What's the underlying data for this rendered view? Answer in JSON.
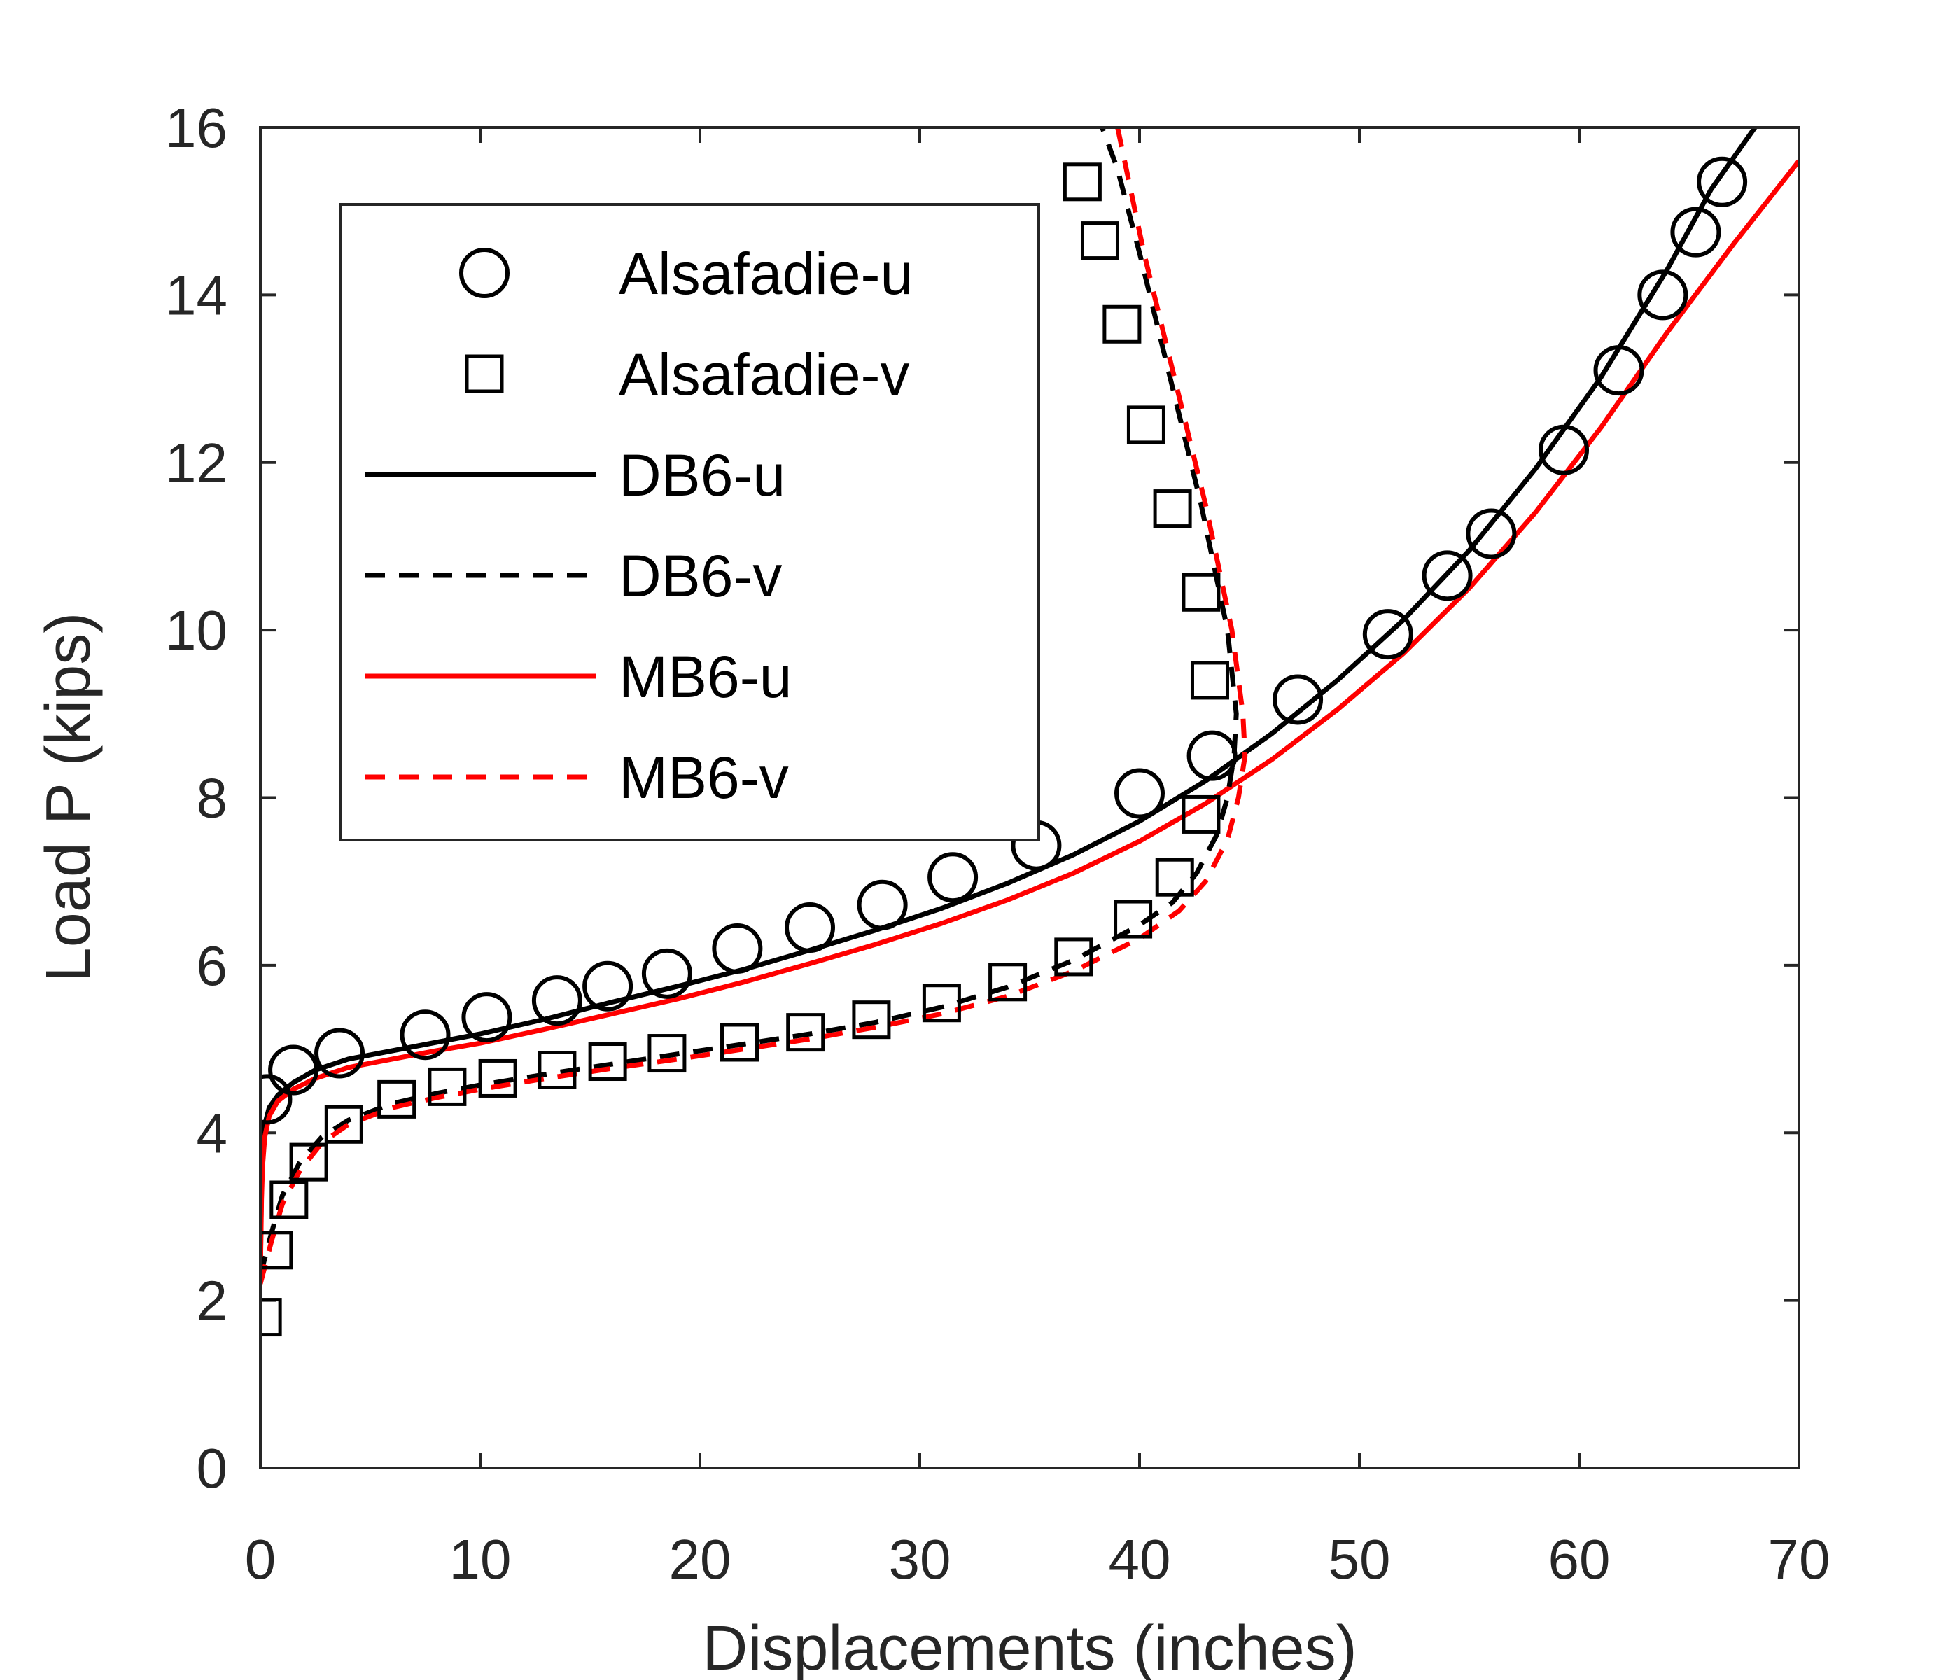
{
  "chart_data": {
    "type": "line",
    "xlabel": "Displacements (inches)",
    "ylabel": "Load P (kips)",
    "xlim": [
      0,
      70
    ],
    "ylim": [
      0,
      16
    ],
    "xticks": [
      0,
      10,
      20,
      30,
      40,
      50,
      60,
      70
    ],
    "yticks": [
      0,
      2,
      4,
      6,
      8,
      10,
      12,
      14,
      16
    ],
    "grid": false,
    "legend_position": "top-left",
    "series": [
      {
        "name": "Alsafadie-u",
        "style": "marker",
        "marker": "circle",
        "color": "#000000",
        "points": [
          [
            0.3,
            4.4
          ],
          [
            1.5,
            4.75
          ],
          [
            3.6,
            4.95
          ],
          [
            7.5,
            5.17
          ],
          [
            10.3,
            5.38
          ],
          [
            13.5,
            5.58
          ],
          [
            15.8,
            5.75
          ],
          [
            18.5,
            5.9
          ],
          [
            21.7,
            6.2
          ],
          [
            25.0,
            6.45
          ],
          [
            28.3,
            6.72
          ],
          [
            31.5,
            7.05
          ],
          [
            35.3,
            7.43
          ],
          [
            40.0,
            8.05
          ],
          [
            43.3,
            8.5
          ],
          [
            47.2,
            9.17
          ],
          [
            51.3,
            9.95
          ],
          [
            54.0,
            10.65
          ],
          [
            56.0,
            11.15
          ],
          [
            59.3,
            12.15
          ],
          [
            61.8,
            13.1
          ],
          [
            63.8,
            14.0
          ],
          [
            65.3,
            14.75
          ],
          [
            66.5,
            15.35
          ]
        ]
      },
      {
        "name": "Alsafadie-v",
        "style": "marker",
        "marker": "square",
        "color": "#000000",
        "points": [
          [
            0.1,
            1.8
          ],
          [
            0.6,
            2.6
          ],
          [
            1.3,
            3.2
          ],
          [
            2.2,
            3.65
          ],
          [
            3.8,
            4.1
          ],
          [
            6.2,
            4.4
          ],
          [
            8.5,
            4.55
          ],
          [
            10.8,
            4.65
          ],
          [
            13.5,
            4.75
          ],
          [
            15.8,
            4.85
          ],
          [
            18.5,
            4.95
          ],
          [
            21.8,
            5.08
          ],
          [
            24.8,
            5.2
          ],
          [
            27.8,
            5.35
          ],
          [
            31.0,
            5.55
          ],
          [
            34.0,
            5.8
          ],
          [
            37.0,
            6.1
          ],
          [
            39.7,
            6.55
          ],
          [
            41.6,
            7.05
          ],
          [
            42.8,
            7.8
          ],
          [
            43.2,
            9.4
          ],
          [
            42.8,
            10.45
          ],
          [
            41.5,
            11.45
          ],
          [
            40.3,
            12.45
          ],
          [
            39.2,
            13.65
          ],
          [
            38.2,
            14.65
          ],
          [
            37.4,
            15.35
          ]
        ]
      },
      {
        "name": "DB6-u",
        "style": "solid",
        "color": "#000000",
        "points": [
          [
            0,
            2.3
          ],
          [
            0.05,
            3.4
          ],
          [
            0.1,
            3.8
          ],
          [
            0.2,
            4.1
          ],
          [
            0.4,
            4.3
          ],
          [
            0.8,
            4.45
          ],
          [
            1.5,
            4.6
          ],
          [
            2.5,
            4.75
          ],
          [
            4,
            4.88
          ],
          [
            6,
            4.98
          ],
          [
            8,
            5.08
          ],
          [
            10,
            5.18
          ],
          [
            13,
            5.36
          ],
          [
            16,
            5.56
          ],
          [
            19,
            5.75
          ],
          [
            22,
            5.95
          ],
          [
            25,
            6.18
          ],
          [
            28,
            6.42
          ],
          [
            31,
            6.68
          ],
          [
            34,
            6.98
          ],
          [
            37,
            7.32
          ],
          [
            40,
            7.72
          ],
          [
            43,
            8.2
          ],
          [
            46,
            8.76
          ],
          [
            49,
            9.4
          ],
          [
            52,
            10.12
          ],
          [
            55,
            10.95
          ],
          [
            58,
            11.92
          ],
          [
            61,
            13.02
          ],
          [
            64,
            14.3
          ],
          [
            66,
            15.26
          ],
          [
            68,
            16.0
          ]
        ]
      },
      {
        "name": "DB6-v",
        "style": "dashed",
        "color": "#000000",
        "points": [
          [
            0,
            2.3
          ],
          [
            0.5,
            2.8
          ],
          [
            1.0,
            3.25
          ],
          [
            1.8,
            3.65
          ],
          [
            2.8,
            3.95
          ],
          [
            4,
            4.15
          ],
          [
            6,
            4.35
          ],
          [
            8,
            4.47
          ],
          [
            10,
            4.57
          ],
          [
            13,
            4.7
          ],
          [
            16,
            4.82
          ],
          [
            19,
            4.94
          ],
          [
            22,
            5.06
          ],
          [
            25,
            5.18
          ],
          [
            28,
            5.32
          ],
          [
            31,
            5.5
          ],
          [
            34,
            5.74
          ],
          [
            37,
            6.06
          ],
          [
            40,
            6.48
          ],
          [
            41.5,
            6.75
          ],
          [
            42.6,
            7.1
          ],
          [
            43.5,
            7.55
          ],
          [
            44.0,
            8.0
          ],
          [
            44.3,
            8.5
          ],
          [
            44.4,
            9.0
          ],
          [
            44.0,
            10.0
          ],
          [
            42.8,
            11.5
          ],
          [
            41.4,
            13.0
          ],
          [
            40.0,
            14.5
          ],
          [
            39.0,
            15.5
          ],
          [
            38.3,
            16.0
          ]
        ]
      },
      {
        "name": "MB6-u",
        "style": "solid",
        "color": "#ff0000",
        "points": [
          [
            0,
            2.3
          ],
          [
            0.05,
            3.2
          ],
          [
            0.1,
            3.6
          ],
          [
            0.2,
            3.95
          ],
          [
            0.4,
            4.2
          ],
          [
            0.8,
            4.38
          ],
          [
            1.5,
            4.52
          ],
          [
            2.5,
            4.65
          ],
          [
            4,
            4.78
          ],
          [
            6,
            4.88
          ],
          [
            8,
            4.98
          ],
          [
            10,
            5.07
          ],
          [
            13,
            5.24
          ],
          [
            16,
            5.42
          ],
          [
            19,
            5.6
          ],
          [
            22,
            5.8
          ],
          [
            25,
            6.02
          ],
          [
            28,
            6.25
          ],
          [
            31,
            6.5
          ],
          [
            34,
            6.78
          ],
          [
            37,
            7.1
          ],
          [
            40,
            7.48
          ],
          [
            43,
            7.93
          ],
          [
            46,
            8.45
          ],
          [
            49,
            9.05
          ],
          [
            52,
            9.72
          ],
          [
            55,
            10.5
          ],
          [
            58,
            11.4
          ],
          [
            61,
            12.42
          ],
          [
            64,
            13.55
          ],
          [
            67,
            14.6
          ],
          [
            70,
            15.6
          ]
        ]
      },
      {
        "name": "MB6-v",
        "style": "dashed",
        "color": "#ff0000",
        "points": [
          [
            0,
            2.2
          ],
          [
            0.5,
            2.7
          ],
          [
            1.0,
            3.15
          ],
          [
            1.8,
            3.55
          ],
          [
            2.8,
            3.88
          ],
          [
            4,
            4.1
          ],
          [
            6,
            4.3
          ],
          [
            8,
            4.42
          ],
          [
            10,
            4.52
          ],
          [
            13,
            4.65
          ],
          [
            16,
            4.77
          ],
          [
            19,
            4.88
          ],
          [
            22,
            5.0
          ],
          [
            25,
            5.12
          ],
          [
            28,
            5.26
          ],
          [
            31,
            5.42
          ],
          [
            34,
            5.63
          ],
          [
            37,
            5.93
          ],
          [
            40,
            6.32
          ],
          [
            41.8,
            6.65
          ],
          [
            43.0,
            7.0
          ],
          [
            44.0,
            7.5
          ],
          [
            44.5,
            8.0
          ],
          [
            44.8,
            8.5
          ],
          [
            44.7,
            9.0
          ],
          [
            44.2,
            10.0
          ],
          [
            43.0,
            11.5
          ],
          [
            41.6,
            13.0
          ],
          [
            40.2,
            14.5
          ],
          [
            39.0,
            16.0
          ]
        ]
      }
    ]
  }
}
